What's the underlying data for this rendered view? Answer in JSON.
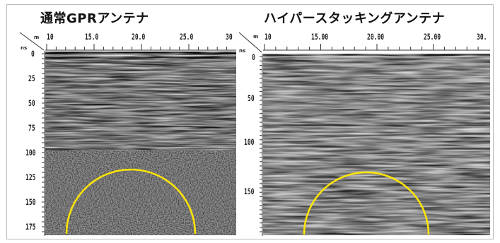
{
  "panels": {
    "left": {
      "title": "通常GPRアンテナ",
      "x_unit": "m",
      "y_unit": "ns",
      "x_ticks": [
        "10",
        "15.0",
        "20.0",
        "25.0",
        "30"
      ],
      "y_ticks": [
        "0",
        "25",
        "50",
        "75",
        "100",
        "125",
        "150",
        "175"
      ]
    },
    "right": {
      "title": "ハイパースタッキングアンテナ",
      "x_unit": "m",
      "y_unit": "ns",
      "x_ticks": [
        "10",
        "15.00",
        "20.00",
        "25.00",
        "30."
      ],
      "y_ticks": [
        "0",
        "50",
        "100",
        "150"
      ]
    }
  },
  "colors": {
    "highlight_circle": "#ffe600",
    "radargram_base": "#8f8f8f"
  }
}
